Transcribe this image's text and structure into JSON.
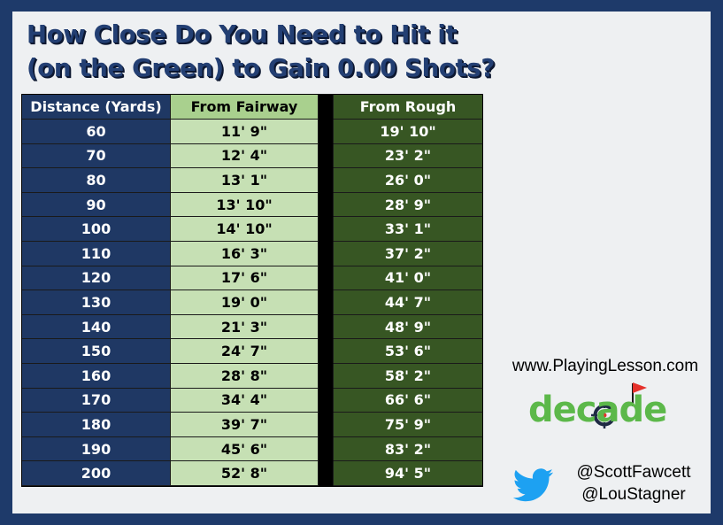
{
  "title": {
    "line1": "How Close Do You Need to Hit it",
    "line2": "(on the Green) to Gain 0.00 Shots?"
  },
  "table": {
    "headers": {
      "distance": "Distance (Yards)",
      "fairway": "From Fairway",
      "rough": "From Rough"
    },
    "rows": [
      {
        "distance": "60",
        "fairway": "11' 9\"",
        "rough": "19' 10\""
      },
      {
        "distance": "70",
        "fairway": "12' 4\"",
        "rough": "23' 2\""
      },
      {
        "distance": "80",
        "fairway": "13' 1\"",
        "rough": "26' 0\""
      },
      {
        "distance": "90",
        "fairway": "13' 10\"",
        "rough": "28' 9\""
      },
      {
        "distance": "100",
        "fairway": "14' 10\"",
        "rough": "33' 1\""
      },
      {
        "distance": "110",
        "fairway": "16' 3\"",
        "rough": "37' 2\""
      },
      {
        "distance": "120",
        "fairway": "17' 6\"",
        "rough": "41' 0\""
      },
      {
        "distance": "130",
        "fairway": "19' 0\"",
        "rough": "44' 7\""
      },
      {
        "distance": "140",
        "fairway": "21' 3\"",
        "rough": "48' 9\""
      },
      {
        "distance": "150",
        "fairway": "24' 7\"",
        "rough": "53' 6\""
      },
      {
        "distance": "160",
        "fairway": "28' 8\"",
        "rough": "58' 2\""
      },
      {
        "distance": "170",
        "fairway": "34' 4\"",
        "rough": "66' 6\""
      },
      {
        "distance": "180",
        "fairway": "39' 7\"",
        "rough": "75' 9\""
      },
      {
        "distance": "190",
        "fairway": "45' 6\"",
        "rough": "83' 2\""
      },
      {
        "distance": "200",
        "fairway": "52' 8\"",
        "rough": "94' 5\""
      }
    ]
  },
  "website": "www.PlayingLesson.com",
  "logo": {
    "text": "decade",
    "color": "#5cb84a",
    "flag_color": "#e5312b",
    "icon": "decade-logo-icon"
  },
  "social": {
    "icon": "twitter-bird-icon",
    "icon_color": "#1da1f2",
    "handles": [
      "@ScottFawcett",
      "@LouStagner"
    ]
  },
  "colors": {
    "border": "#1e3a6a",
    "title": "#233f73",
    "distance_col": "#1f3864",
    "fairway_col": "#c6e0b4",
    "fairway_header": "#a9d08e",
    "rough_col": "#375623"
  }
}
